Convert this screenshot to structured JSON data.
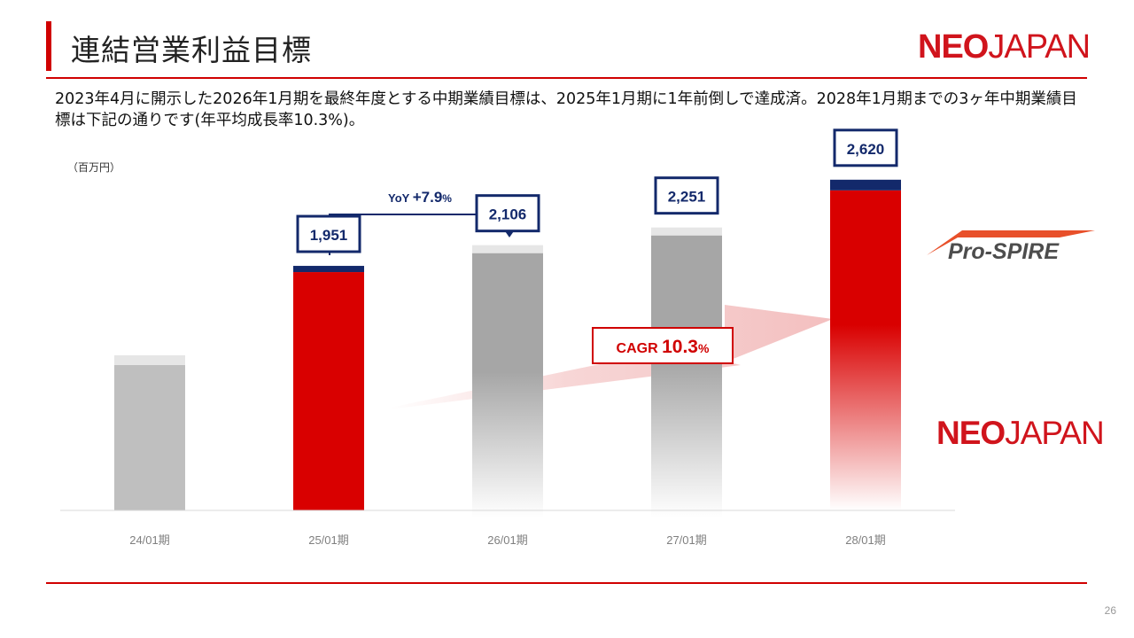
{
  "title": "連結営業利益目標",
  "logo": {
    "bold": "NEO",
    "light": "JAPAN"
  },
  "description": "2023年4月に開示した2026年1月期を最終年度とする中期業績目標は、2025年1月期に1年前倒しで達成済。2028年1月期までの3ヶ年中期業績目標は下記の通りです(年平均成長率10.3%)。",
  "unit_label": "（百万円）",
  "page_number": "26",
  "prospire_logo": "Pro-SPIRE",
  "colors": {
    "accent_red": "#d00000",
    "navy": "#13296b",
    "gray_bar": "#bfbfbf",
    "target_gray": "#a6a6a6"
  },
  "chart_data": {
    "type": "bar",
    "categories": [
      "24/01期",
      "25/01期",
      "26/01期",
      "27/01期",
      "28/01期"
    ],
    "values": [
      null,
      1951,
      2106,
      2251,
      2620
    ],
    "value_labels": [
      "",
      "1,951",
      "2,106",
      "2,251",
      "2,620"
    ],
    "ylabel": "（百万円）",
    "ylim": [
      0,
      2800
    ],
    "annotations": {
      "yoy": {
        "prefix": "YoY ",
        "value": "+7.9",
        "suffix": "%"
      },
      "cagr": {
        "prefix": "CAGR ",
        "value": "10.3",
        "suffix": "%"
      }
    },
    "legend": "right",
    "grid": false
  }
}
